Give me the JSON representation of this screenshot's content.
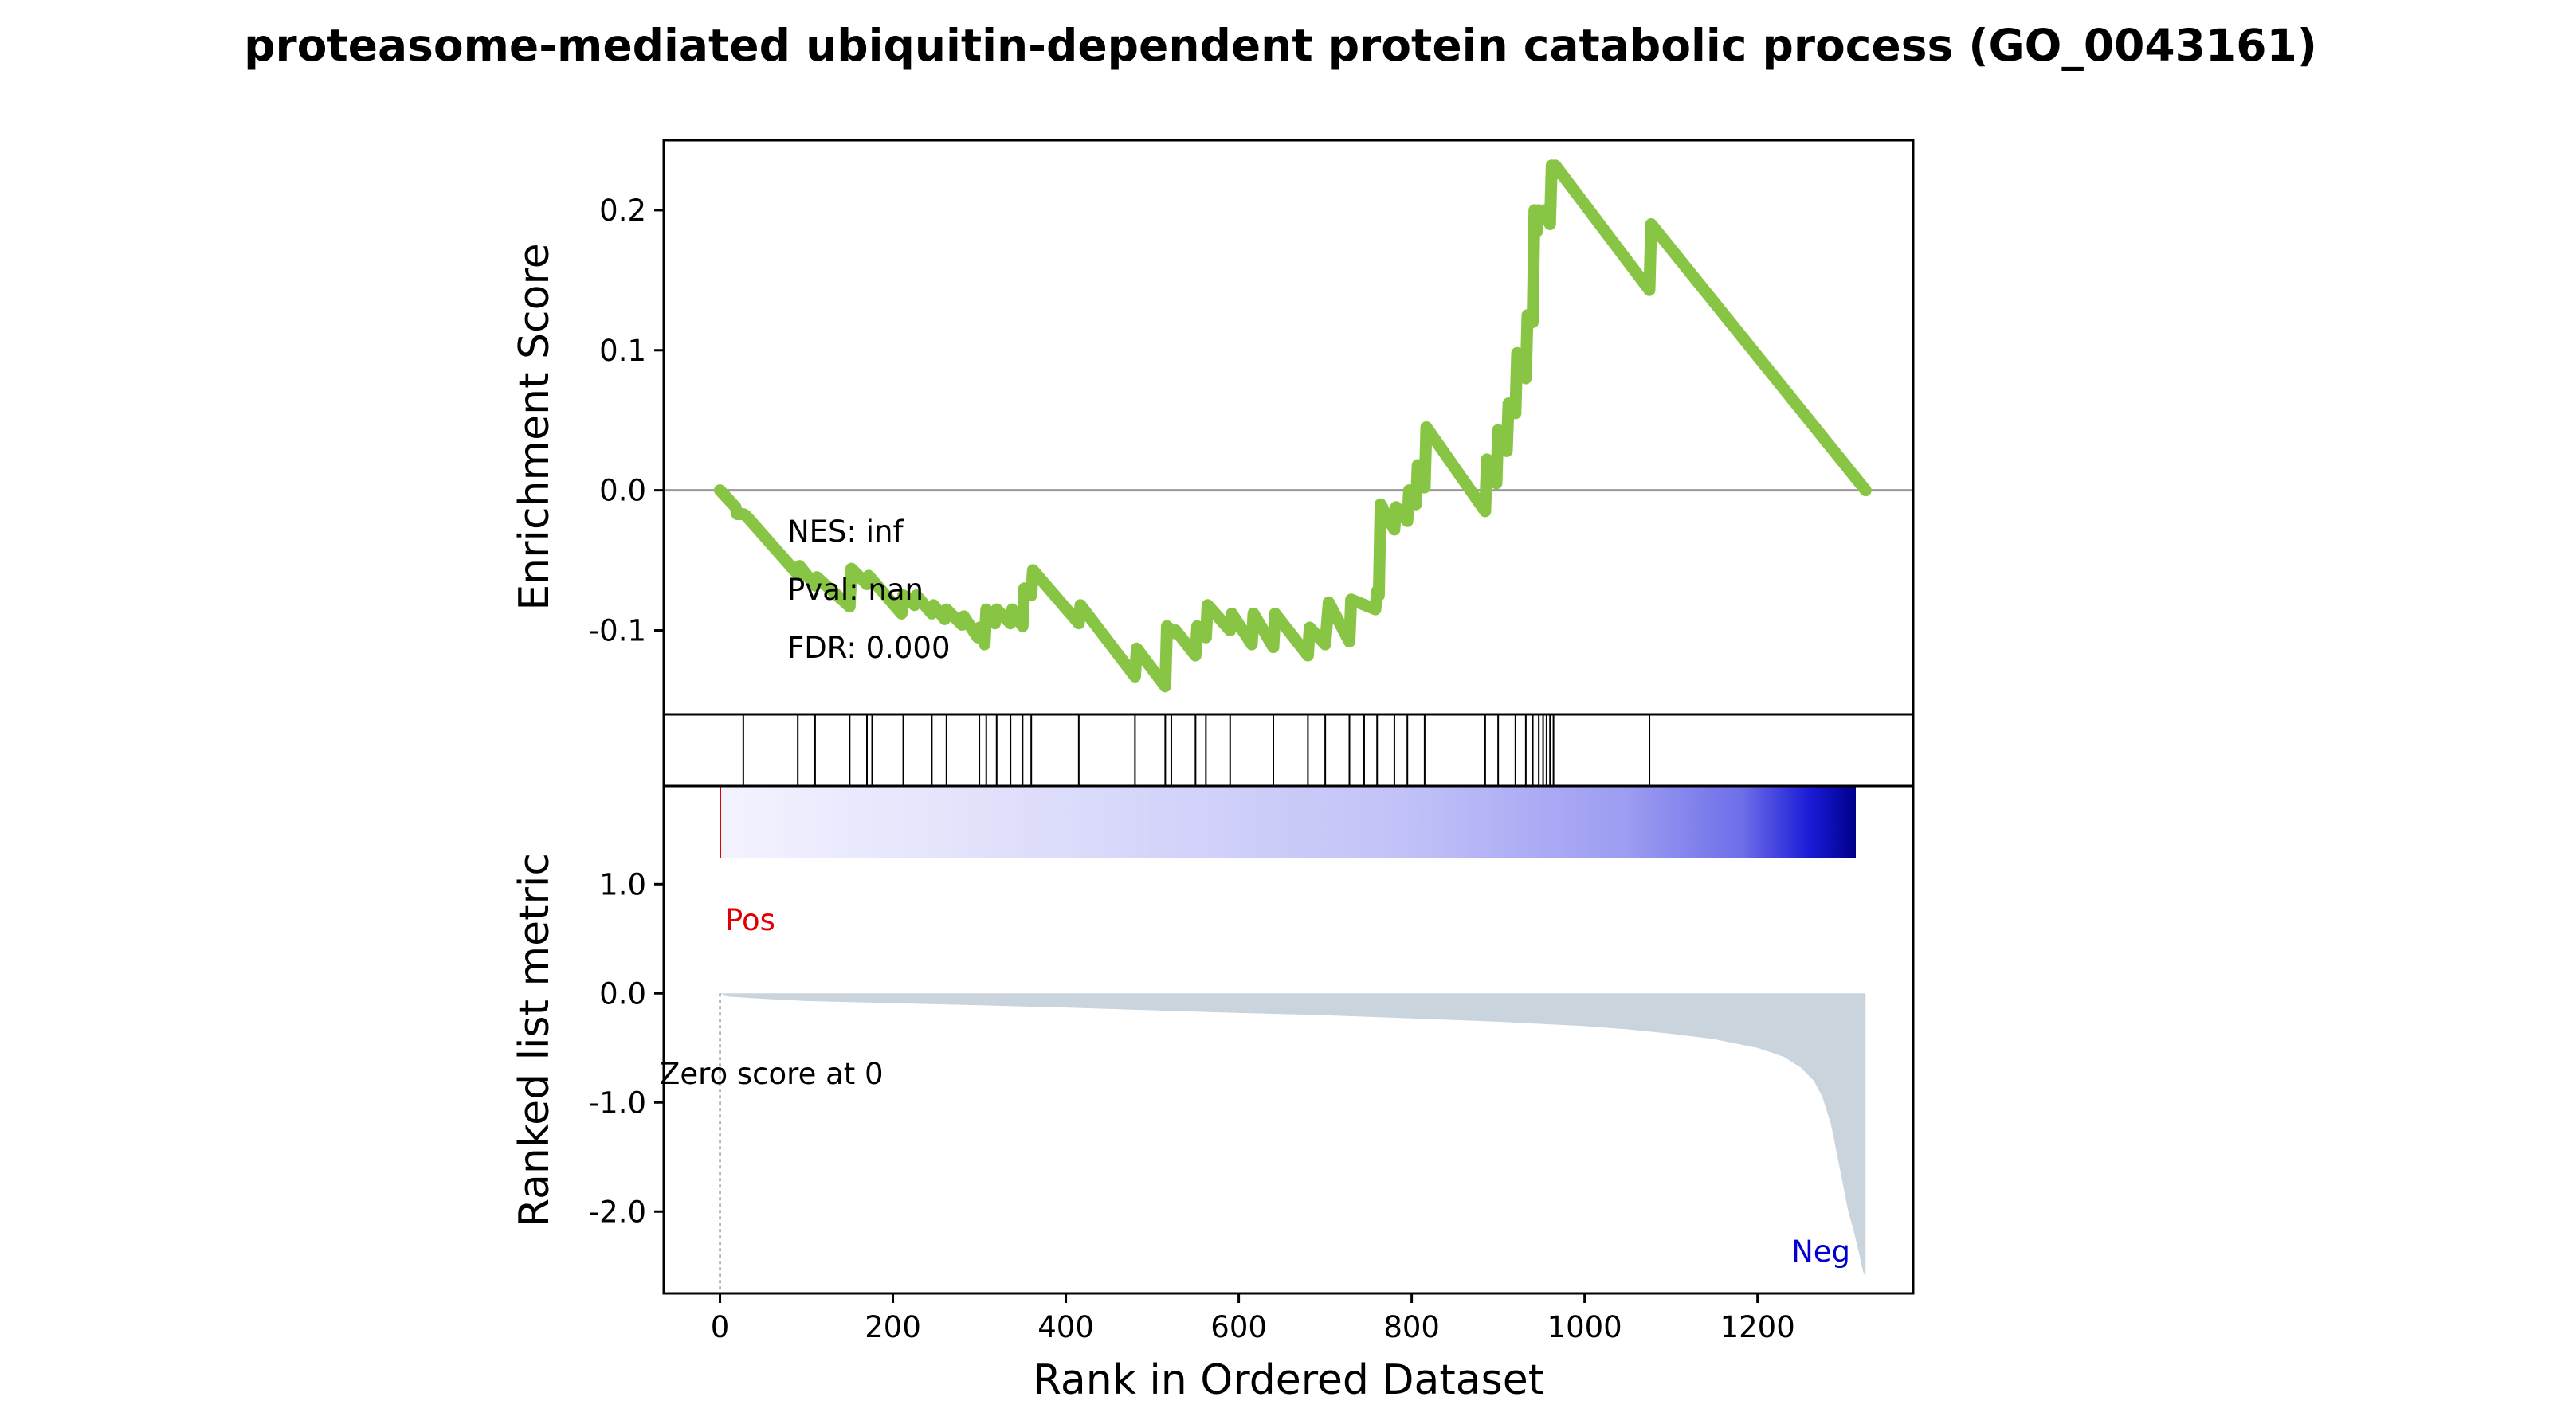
{
  "chart_data": [
    {
      "type": "line",
      "panel": "enrichment",
      "title": "proteasome-mediated ubiquitin-dependent protein catabolic process (GO_0043161)",
      "ylabel": "Enrichment Score",
      "xlim": [
        -65,
        1380
      ],
      "ylim": [
        -0.16,
        0.25
      ],
      "yticks": [
        -0.1,
        0.0,
        0.1,
        0.2
      ],
      "ytick_labels": [
        "-0.1",
        "0.0",
        "0.1",
        "0.2"
      ],
      "zero_line": true,
      "color": "#88C544",
      "annotations": [
        "NES: inf",
        "Pval: nan",
        "FDR: 0.000"
      ],
      "x": [
        0,
        18,
        20,
        27,
        30,
        90,
        92,
        110,
        112,
        150,
        152,
        170,
        172,
        210,
        212,
        225,
        227,
        245,
        247,
        260,
        262,
        280,
        282,
        298,
        300,
        306,
        308,
        318,
        320,
        336,
        338,
        350,
        352,
        360,
        362,
        415,
        417,
        480,
        482,
        515,
        517,
        525,
        527,
        550,
        552,
        562,
        564,
        590,
        592,
        615,
        617,
        640,
        642,
        680,
        682,
        700,
        704,
        728,
        730,
        758,
        760,
        762,
        764,
        780,
        782,
        795,
        797,
        805,
        807,
        815,
        817,
        885,
        887,
        898,
        900,
        910,
        912,
        920,
        922,
        932,
        934,
        940,
        942,
        945,
        947,
        952,
        954,
        960,
        962,
        964,
        966,
        1075,
        1077,
        1325
      ],
      "y": [
        0.0,
        -0.012,
        -0.017,
        -0.017,
        -0.018,
        -0.06,
        -0.054,
        -0.068,
        -0.062,
        -0.083,
        -0.056,
        -0.067,
        -0.061,
        -0.088,
        -0.075,
        -0.082,
        -0.075,
        -0.088,
        -0.082,
        -0.092,
        -0.085,
        -0.096,
        -0.09,
        -0.105,
        -0.098,
        -0.11,
        -0.085,
        -0.095,
        -0.085,
        -0.095,
        -0.085,
        -0.097,
        -0.07,
        -0.075,
        -0.057,
        -0.095,
        -0.082,
        -0.133,
        -0.113,
        -0.14,
        -0.097,
        -0.102,
        -0.1,
        -0.118,
        -0.097,
        -0.105,
        -0.082,
        -0.1,
        -0.088,
        -0.11,
        -0.088,
        -0.112,
        -0.088,
        -0.118,
        -0.098,
        -0.11,
        -0.08,
        -0.108,
        -0.078,
        -0.085,
        -0.072,
        -0.075,
        -0.01,
        -0.028,
        -0.012,
        -0.022,
        0.0,
        -0.01,
        0.018,
        0.002,
        0.045,
        -0.015,
        0.022,
        0.005,
        0.043,
        0.028,
        0.062,
        0.055,
        0.098,
        0.08,
        0.125,
        0.12,
        0.2,
        0.185,
        0.2,
        0.197,
        0.2,
        0.19,
        0.232,
        0.225,
        0.232,
        0.143,
        0.19,
        0.0
      ]
    },
    {
      "type": "scatter",
      "panel": "hits",
      "hits": [
        27,
        90,
        110,
        150,
        170,
        176,
        212,
        245,
        262,
        300,
        308,
        320,
        336,
        350,
        360,
        415,
        480,
        515,
        522,
        550,
        562,
        590,
        640,
        680,
        700,
        728,
        745,
        760,
        780,
        795,
        815,
        885,
        900,
        920,
        932,
        940,
        947,
        952,
        956,
        960,
        964,
        1075
      ]
    },
    {
      "type": "area",
      "panel": "ranked-list",
      "ylabel": "Ranked list metric",
      "xlabel": "Rank in Ordered Dataset",
      "xlim": [
        -65,
        1380
      ],
      "ylim": [
        -2.75,
        1.9
      ],
      "yticks": [
        1.0,
        0.0,
        -1.0,
        -2.0
      ],
      "ytick_labels": [
        "1.0",
        "0.0",
        "-1.0",
        "-2.0"
      ],
      "xticks": [
        0,
        200,
        400,
        600,
        800,
        1000,
        1200
      ],
      "xtick_labels": [
        "0",
        "200",
        "400",
        "600",
        "800",
        "1000",
        "1200"
      ],
      "fill_color": "#c9d4dd",
      "x": [
        0,
        10,
        50,
        100,
        200,
        300,
        400,
        500,
        600,
        700,
        800,
        900,
        1000,
        1050,
        1100,
        1150,
        1200,
        1230,
        1250,
        1265,
        1275,
        1285,
        1295,
        1305,
        1312,
        1318,
        1322,
        1325
      ],
      "y": [
        0.0,
        -0.03,
        -0.05,
        -0.07,
        -0.09,
        -0.11,
        -0.13,
        -0.155,
        -0.18,
        -0.2,
        -0.23,
        -0.26,
        -0.3,
        -0.33,
        -0.37,
        -0.42,
        -0.5,
        -0.58,
        -0.68,
        -0.8,
        -0.95,
        -1.2,
        -1.6,
        -2.0,
        -2.2,
        -2.4,
        -2.55,
        -2.6
      ],
      "labels": {
        "pos": "Pos",
        "neg": "Neg",
        "zero_score": "Zero score at 0"
      },
      "label_colors": {
        "pos": "#e00000",
        "neg": "#0000d0"
      },
      "zero_rank": 0,
      "colorbar": {
        "from": "#ffffff",
        "to": "#00008b"
      }
    }
  ]
}
